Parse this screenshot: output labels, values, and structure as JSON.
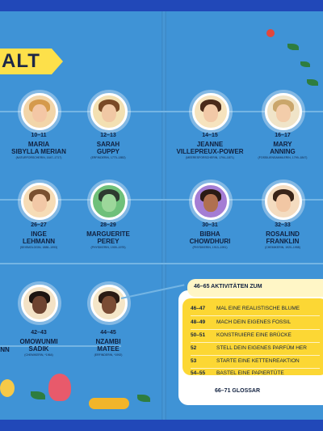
{
  "heading": "ALT",
  "people": [
    {
      "pages": "10–11",
      "name1": "MARIA",
      "name2": "SIBYLLA MERIAN",
      "sub": "(NATURFORSCHERIN, 1647–1717)"
    },
    {
      "pages": "12–13",
      "name1": "SARAH",
      "name2": "GUPPY",
      "sub": "(ERFINDERIN, 1770–1852)"
    },
    {
      "pages": "14–15",
      "name1": "JEANNE",
      "name2": "VILLEPREUX-POWER",
      "sub": "(MEERESFORSCHERIN, 1794–1871)"
    },
    {
      "pages": "16–17",
      "name1": "MARY",
      "name2": "ANNING",
      "sub": "(FOSSILIENSAMMLERIN, 1799–1847)"
    },
    {
      "pages": "26–27",
      "name1": "INGE",
      "name2": "LEHMANN",
      "sub": "(SEISMOLOGIN, 1888–1993)"
    },
    {
      "pages": "28–29",
      "name1": "MARGUERITE",
      "name2": "PEREY",
      "sub": "(PHYSIKERIN, 1909–1975)"
    },
    {
      "pages": "30–31",
      "name1": "BIBHA",
      "name2": "CHOWDHURI",
      "sub": "(PHYSIKERIN, 1913–1991)"
    },
    {
      "pages": "32–33",
      "name1": "ROSALIND",
      "name2": "FRANKLIN",
      "sub": "(CHEMIKERIN, 1920–1958)"
    },
    {
      "pages": "42–43",
      "name1": "OMOWUNMI",
      "name2": "SADIK",
      "sub": "(CHEMIKERIN, *1964)"
    },
    {
      "pages": "44–45",
      "name1": "NZAMBI",
      "name2": "MATEE",
      "sub": "(ERFINDERIN, *1992)"
    }
  ],
  "partial_name": "NN",
  "activities": {
    "title": "46–65 AKTIVITÄTEN ZUM",
    "items": [
      {
        "pages": "46–47",
        "label": "MAL EINE REALISTISCHE BLUME"
      },
      {
        "pages": "48–49",
        "label": "MACH DEIN EIGENES FOSSIL"
      },
      {
        "pages": "50–51",
        "label": "KONSTRUIERE EINE BRÜCKE"
      },
      {
        "pages": "52",
        "label": "STELL DEIN EIGENES PARFÜM HER"
      },
      {
        "pages": "53",
        "label": "STARTE EINE KETTENREAKTION"
      },
      {
        "pages": "54–55",
        "label": "BASTEL EINE PAPIERTÜTE"
      }
    ],
    "glossar": "66–71 GLOSSAR"
  },
  "colors": {
    "background": "#3f93d6",
    "banner": "#fde04a",
    "activity_box": "#fcd734",
    "frame": "#2148b8"
  }
}
